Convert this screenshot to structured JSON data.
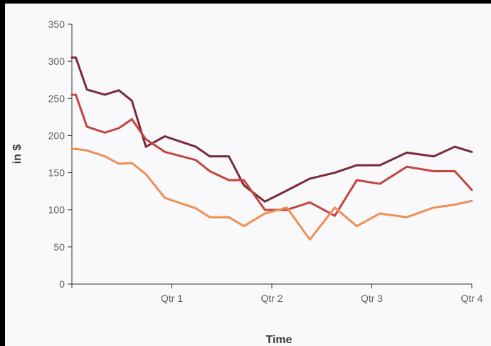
{
  "chart_data": {
    "type": "line",
    "title": "",
    "xlabel": "Time",
    "ylabel": "in $",
    "ylim": [
      0,
      350
    ],
    "yticks": [
      0,
      50,
      100,
      150,
      200,
      250,
      300,
      350
    ],
    "xlim": [
      0,
      4
    ],
    "xticks": [
      {
        "value": 1,
        "label": "Qtr 1"
      },
      {
        "value": 2,
        "label": "Qtr 2"
      },
      {
        "value": 3,
        "label": "Qtr 3"
      },
      {
        "value": 4,
        "label": "Qtr 4"
      }
    ],
    "x": [
      0,
      0.04,
      0.15,
      0.33,
      0.47,
      0.6,
      0.74,
      0.93,
      1.24,
      1.38,
      1.57,
      1.72,
      1.93,
      2.15,
      2.38,
      2.63,
      2.85,
      3.08,
      3.35,
      3.62,
      3.83,
      4.0
    ],
    "series": [
      {
        "color": "#7b2a3a",
        "values": [
          305,
          305,
          262,
          255,
          261,
          247,
          185,
          199,
          185,
          172,
          172,
          133,
          111,
          126,
          142,
          150,
          160,
          160,
          177,
          172,
          185,
          178
        ]
      },
      {
        "color": "#c2453f",
        "values": [
          255,
          255,
          212,
          204,
          210,
          222,
          195,
          178,
          167,
          152,
          140,
          140,
          100,
          100,
          110,
          92,
          140,
          135,
          158,
          152,
          152,
          127
        ]
      },
      {
        "color": "#ee8f55",
        "values": [
          182,
          182,
          180,
          172,
          162,
          163,
          148,
          116,
          102,
          90,
          90,
          78,
          95,
          103,
          60,
          103,
          78,
          95,
          90,
          103,
          107,
          112
        ]
      }
    ]
  }
}
